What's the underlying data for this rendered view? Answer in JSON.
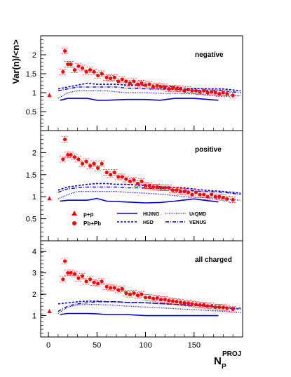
{
  "figure": {
    "ylabel": "Var(n)/<n>",
    "xlabel_main": "N",
    "xlabel_sub": "P",
    "xlabel_sup": "PROJ"
  },
  "legend": {
    "pp": "p+p",
    "pbpb": "Pb+Pb",
    "hijing": "HIJING",
    "hsd": "HSD",
    "urqmd": "UrQMD",
    "venus": "VENUS"
  },
  "colors": {
    "data": "#ff0000",
    "model": "#0000cc",
    "axis": "#000000"
  },
  "chart_data": [
    {
      "type": "scatter",
      "title": "negative",
      "x_range": [
        -8,
        200
      ],
      "ylim": [
        0,
        2.5
      ],
      "y_ticks": [
        0.5,
        1,
        1.5,
        2
      ],
      "y_tick_labels": [
        "0.5",
        "1",
        "1.5",
        "2"
      ],
      "pp": {
        "x": 1,
        "y": 0.93
      },
      "series": [
        {
          "name": "Pb+Pb",
          "kind": "points",
          "x": [
            15,
            17,
            20,
            23,
            27,
            31,
            35,
            39,
            43,
            47,
            51,
            55,
            60,
            64,
            68,
            72,
            76,
            80,
            84,
            88,
            92,
            96,
            100,
            104,
            108,
            112,
            116,
            120,
            124,
            128,
            132,
            136,
            140,
            144,
            148,
            152,
            156,
            160,
            164,
            168,
            172,
            176,
            180,
            184,
            190
          ],
          "y": [
            1.55,
            2.1,
            1.75,
            1.75,
            1.6,
            1.7,
            1.65,
            1.55,
            1.6,
            1.55,
            1.45,
            1.5,
            1.4,
            1.38,
            1.4,
            1.3,
            1.35,
            1.3,
            1.25,
            1.3,
            1.22,
            1.25,
            1.2,
            1.22,
            1.15,
            1.18,
            1.15,
            1.15,
            1.1,
            1.12,
            1.1,
            1.1,
            1.05,
            1.08,
            1.05,
            1.05,
            1.02,
            1.05,
            1.0,
            1.02,
            1.0,
            0.97,
            1.0,
            0.97,
            0.93
          ]
        },
        {
          "name": "HIJING",
          "kind": "solid",
          "x": [
            12,
            20,
            40,
            50,
            60,
            80,
            100,
            115,
            130,
            150,
            175
          ],
          "y": [
            0.8,
            0.85,
            0.85,
            0.8,
            0.8,
            0.82,
            0.82,
            0.8,
            0.85,
            0.85,
            0.8
          ]
        },
        {
          "name": "HSD",
          "kind": "dashed",
          "x": [
            10,
            20,
            30,
            40,
            50,
            60,
            70,
            80,
            100,
            120,
            140,
            160,
            180,
            198
          ],
          "y": [
            1.1,
            1.15,
            1.2,
            1.25,
            1.22,
            1.22,
            1.22,
            1.2,
            1.2,
            1.18,
            1.12,
            1.1,
            1.1,
            1.05
          ]
        },
        {
          "name": "UrQMD",
          "kind": "dotted",
          "x": [
            10,
            20,
            30,
            40,
            50,
            60,
            70,
            80,
            100,
            120,
            140,
            160,
            180,
            198
          ],
          "y": [
            0.85,
            1.0,
            1.05,
            1.05,
            1.05,
            1.05,
            1.02,
            1.0,
            1.0,
            0.98,
            0.98,
            0.95,
            0.92,
            0.92
          ]
        },
        {
          "name": "VENUS",
          "kind": "dashdot",
          "x": [
            10,
            20,
            30,
            40,
            50,
            60,
            70,
            80,
            100,
            120,
            140,
            160,
            180,
            198
          ],
          "y": [
            1.05,
            1.1,
            1.15,
            1.15,
            1.15,
            1.15,
            1.15,
            1.12,
            1.1,
            1.1,
            1.08,
            1.05,
            1.05,
            1.0
          ]
        }
      ]
    },
    {
      "type": "scatter",
      "title": "positive",
      "x_range": [
        -8,
        200
      ],
      "ylim": [
        0,
        2.5
      ],
      "y_ticks": [
        0.5,
        1,
        1.5,
        2
      ],
      "y_tick_labels": [
        "0.5",
        "1",
        "1.5",
        "2"
      ],
      "pp": {
        "x": 1,
        "y": 0.96
      },
      "series": [
        {
          "name": "Pb+Pb",
          "kind": "points",
          "x": [
            15,
            17,
            20,
            23,
            27,
            31,
            35,
            39,
            43,
            47,
            51,
            55,
            60,
            64,
            68,
            72,
            76,
            80,
            84,
            88,
            92,
            96,
            100,
            104,
            108,
            112,
            116,
            120,
            124,
            128,
            132,
            136,
            140,
            144,
            148,
            152,
            156,
            160,
            164,
            168,
            172,
            176,
            180,
            184,
            190
          ],
          "y": [
            1.85,
            2.3,
            1.95,
            1.95,
            1.9,
            1.85,
            1.75,
            1.8,
            1.7,
            1.75,
            1.65,
            1.75,
            1.55,
            1.5,
            1.55,
            1.45,
            1.45,
            1.4,
            1.35,
            1.38,
            1.3,
            1.35,
            1.25,
            1.25,
            1.22,
            1.22,
            1.2,
            1.2,
            1.2,
            1.15,
            1.15,
            1.12,
            1.12,
            1.1,
            1.05,
            1.1,
            1.05,
            1.05,
            1.0,
            1.05,
            1.0,
            1.0,
            0.98,
            0.95,
            0.93
          ]
        },
        {
          "name": "HIJING",
          "kind": "solid",
          "x": [
            12,
            20,
            40,
            50,
            60,
            80,
            100,
            115,
            130,
            150,
            175
          ],
          "y": [
            0.9,
            0.92,
            0.92,
            0.96,
            0.9,
            0.88,
            0.86,
            0.87,
            0.9,
            0.95,
            0.88
          ]
        },
        {
          "name": "HSD",
          "kind": "dashed",
          "x": [
            10,
            20,
            30,
            40,
            50,
            60,
            70,
            80,
            100,
            120,
            140,
            160,
            180,
            198
          ],
          "y": [
            1.15,
            1.22,
            1.25,
            1.28,
            1.3,
            1.3,
            1.28,
            1.28,
            1.25,
            1.22,
            1.2,
            1.15,
            1.12,
            1.08
          ]
        },
        {
          "name": "UrQMD",
          "kind": "dotted",
          "x": [
            10,
            20,
            30,
            40,
            50,
            60,
            70,
            80,
            100,
            120,
            140,
            160,
            180,
            198
          ],
          "y": [
            0.95,
            1.05,
            1.12,
            1.12,
            1.12,
            1.12,
            1.12,
            1.1,
            1.08,
            1.05,
            1.0,
            0.98,
            0.95,
            0.92
          ]
        },
        {
          "name": "VENUS",
          "kind": "dashdot",
          "x": [
            10,
            20,
            30,
            40,
            50,
            60,
            70,
            80,
            100,
            120,
            140,
            160,
            180,
            198
          ],
          "y": [
            1.1,
            1.18,
            1.2,
            1.22,
            1.22,
            1.22,
            1.22,
            1.2,
            1.2,
            1.18,
            1.15,
            1.12,
            1.1,
            1.05
          ]
        }
      ]
    },
    {
      "type": "scatter",
      "title": "all charged",
      "x_range": [
        -8,
        200
      ],
      "ylim": [
        0,
        4.5
      ],
      "y_ticks": [
        1,
        2,
        3,
        4
      ],
      "y_tick_labels": [
        "1",
        "2",
        "3",
        "4"
      ],
      "pp": {
        "x": 1,
        "y": 1.2
      },
      "series": [
        {
          "name": "Pb+Pb",
          "kind": "points",
          "x": [
            15,
            17,
            20,
            23,
            27,
            31,
            35,
            39,
            43,
            47,
            51,
            55,
            60,
            64,
            68,
            72,
            76,
            80,
            84,
            88,
            92,
            96,
            100,
            104,
            108,
            112,
            116,
            120,
            124,
            128,
            132,
            136,
            140,
            144,
            148,
            152,
            156,
            160,
            164,
            168,
            172,
            176,
            180,
            184,
            190
          ],
          "y": [
            2.7,
            3.55,
            3.0,
            3.0,
            2.95,
            2.75,
            2.85,
            2.6,
            2.7,
            2.55,
            2.5,
            2.6,
            2.35,
            2.3,
            2.3,
            2.2,
            2.25,
            2.05,
            2.0,
            2.05,
            1.95,
            2.0,
            1.85,
            1.85,
            1.8,
            1.82,
            1.75,
            1.75,
            1.7,
            1.68,
            1.65,
            1.62,
            1.6,
            1.58,
            1.55,
            1.52,
            1.5,
            1.5,
            1.45,
            1.45,
            1.4,
            1.4,
            1.38,
            1.35,
            1.3
          ]
        },
        {
          "name": "HIJING",
          "kind": "solid",
          "x": [
            12,
            20,
            40,
            50,
            60,
            80,
            100,
            115,
            130,
            150,
            175
          ],
          "y": [
            1.05,
            1.1,
            1.1,
            1.08,
            1.05,
            1.05,
            1.0,
            1.0,
            1.0,
            1.0,
            1.0
          ]
        },
        {
          "name": "HSD",
          "kind": "dashed",
          "x": [
            10,
            20,
            30,
            40,
            50,
            60,
            70,
            80,
            100,
            120,
            140,
            160,
            180,
            198
          ],
          "y": [
            1.55,
            1.6,
            1.65,
            1.68,
            1.68,
            1.65,
            1.65,
            1.62,
            1.6,
            1.55,
            1.5,
            1.45,
            1.38,
            1.3
          ]
        },
        {
          "name": "UrQMD",
          "kind": "dotted",
          "x": [
            10,
            20,
            30,
            40,
            50,
            60,
            70,
            80,
            100,
            120,
            140,
            160,
            180,
            198
          ],
          "y": [
            1.1,
            1.4,
            1.5,
            1.52,
            1.52,
            1.5,
            1.48,
            1.45,
            1.4,
            1.35,
            1.3,
            1.25,
            1.2,
            1.15
          ]
        },
        {
          "name": "VENUS",
          "kind": "dashdot",
          "x": [
            10,
            20,
            30,
            40,
            50,
            60,
            70,
            80,
            100,
            120,
            140,
            160,
            180,
            198
          ],
          "y": [
            1.2,
            1.45,
            1.55,
            1.6,
            1.65,
            1.65,
            1.65,
            1.62,
            1.6,
            1.55,
            1.5,
            1.45,
            1.4,
            1.35
          ]
        }
      ]
    }
  ],
  "x_axis": {
    "ticks": [
      0,
      50,
      100,
      150
    ],
    "tick_labels": [
      "0",
      "50",
      "100",
      "150"
    ]
  }
}
